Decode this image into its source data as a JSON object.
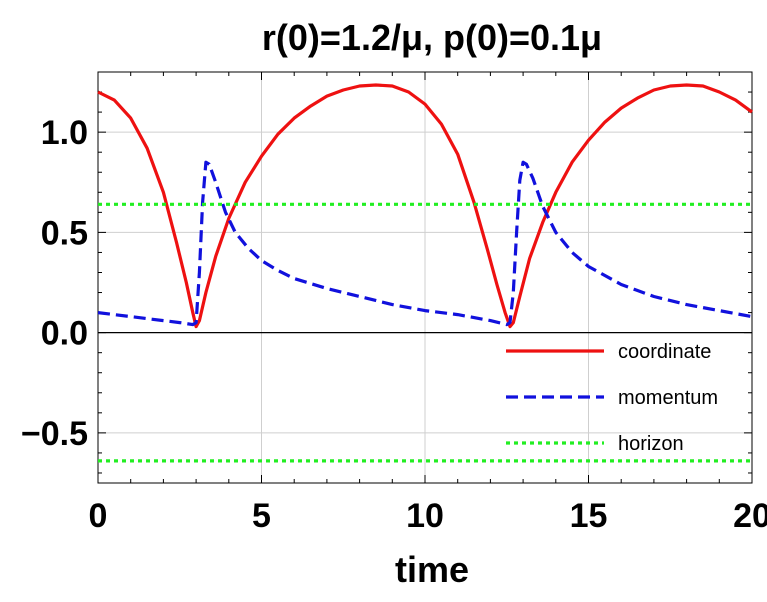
{
  "chart_data": {
    "type": "line",
    "title": "r(0)=1.2/μ, p(0)=0.1μ",
    "xlabel": "time",
    "ylabel": "",
    "xlim": [
      0,
      20
    ],
    "ylim": [
      -0.75,
      1.3
    ],
    "xticks": [
      0,
      5,
      10,
      15,
      20
    ],
    "xtick_labels": [
      "0",
      "5",
      "10",
      "15",
      "20"
    ],
    "yticks": [
      -0.5,
      0.0,
      0.5,
      1.0
    ],
    "ytick_labels": [
      "−0.5",
      "0.0",
      "0.5",
      "1.0"
    ],
    "grid": true,
    "legend_position": "bottom-right",
    "colors": {
      "coordinate": "#ee1111",
      "momentum": "#1111dd",
      "horizon": "#22ee22"
    },
    "series": [
      {
        "name": "coordinate",
        "style": "solid",
        "x": [
          0,
          0.5,
          1.0,
          1.5,
          2.0,
          2.4,
          2.7,
          2.9,
          3.0,
          3.1,
          3.3,
          3.6,
          4.0,
          4.5,
          5.0,
          5.5,
          6.0,
          6.5,
          7.0,
          7.5,
          8.0,
          8.5,
          9.0,
          9.5,
          10.0,
          10.5,
          11.0,
          11.5,
          11.9,
          12.2,
          12.45,
          12.6,
          12.7,
          12.9,
          13.2,
          13.6,
          14.0,
          14.5,
          15.0,
          15.5,
          16.0,
          16.5,
          17.0,
          17.5,
          18.0,
          18.5,
          19.0,
          19.5,
          20.0
        ],
        "y": [
          1.2,
          1.16,
          1.07,
          0.92,
          0.7,
          0.45,
          0.25,
          0.1,
          0.03,
          0.06,
          0.2,
          0.38,
          0.57,
          0.75,
          0.88,
          0.99,
          1.07,
          1.13,
          1.18,
          1.21,
          1.23,
          1.235,
          1.23,
          1.2,
          1.14,
          1.04,
          0.89,
          0.65,
          0.42,
          0.24,
          0.1,
          0.03,
          0.05,
          0.18,
          0.37,
          0.55,
          0.7,
          0.85,
          0.96,
          1.05,
          1.12,
          1.17,
          1.21,
          1.23,
          1.235,
          1.23,
          1.2,
          1.16,
          1.1
        ]
      },
      {
        "name": "momentum",
        "style": "dashed",
        "x": [
          0,
          0.5,
          1.0,
          1.5,
          2.0,
          2.5,
          2.9,
          3.0,
          3.1,
          3.2,
          3.3,
          3.4,
          3.6,
          3.9,
          4.2,
          4.6,
          5.0,
          5.5,
          6.0,
          7.0,
          8.0,
          9.0,
          10.0,
          11.0,
          12.0,
          12.5,
          12.6,
          12.7,
          12.8,
          12.9,
          13.0,
          13.1,
          13.3,
          13.6,
          14.0,
          14.5,
          15.0,
          16.0,
          17.0,
          18.0,
          19.0,
          20.0
        ],
        "y": [
          0.1,
          0.09,
          0.08,
          0.07,
          0.06,
          0.05,
          0.04,
          0.05,
          0.3,
          0.65,
          0.85,
          0.84,
          0.75,
          0.6,
          0.5,
          0.42,
          0.36,
          0.31,
          0.27,
          0.22,
          0.18,
          0.14,
          0.11,
          0.09,
          0.06,
          0.04,
          0.05,
          0.2,
          0.5,
          0.76,
          0.85,
          0.84,
          0.77,
          0.63,
          0.5,
          0.4,
          0.33,
          0.24,
          0.18,
          0.14,
          0.11,
          0.08
        ]
      },
      {
        "name": "horizon",
        "style": "dotted",
        "segments": [
          {
            "x": [
              0,
              20
            ],
            "y": [
              0.64,
              0.64
            ]
          },
          {
            "x": [
              0,
              20
            ],
            "y": [
              -0.64,
              -0.64
            ]
          }
        ]
      }
    ]
  }
}
